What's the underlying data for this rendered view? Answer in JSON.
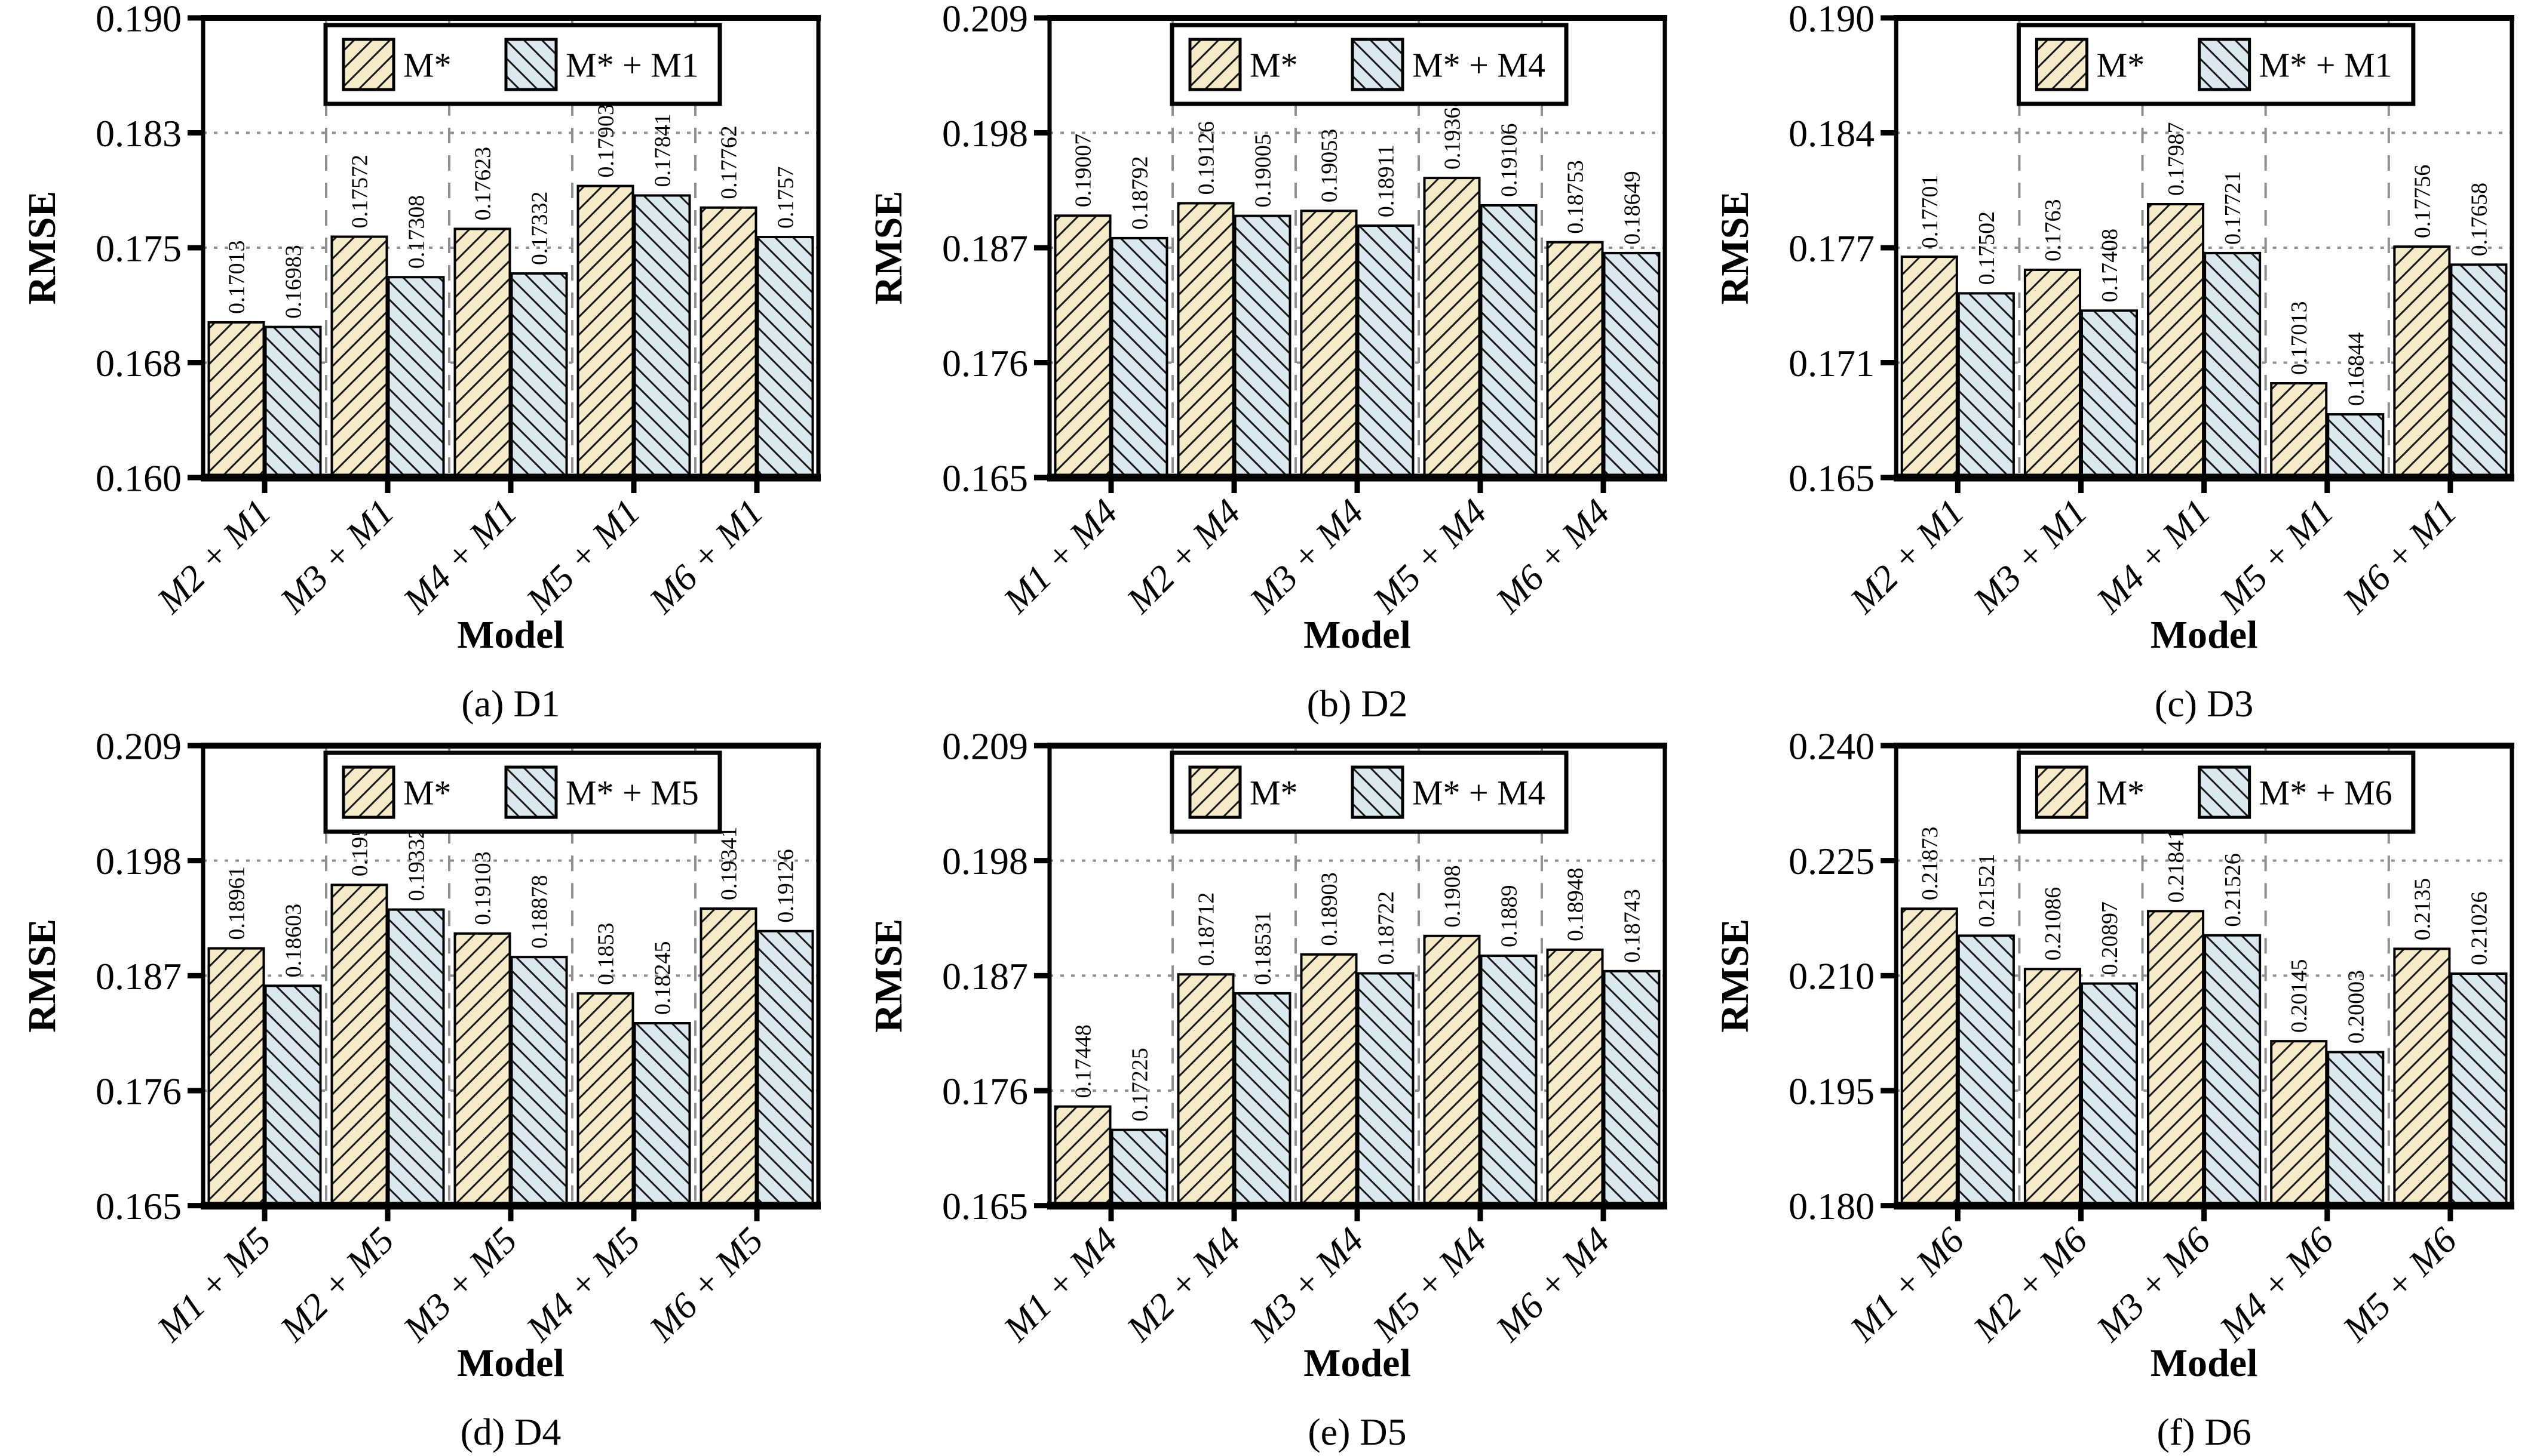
{
  "figure": {
    "kind": "six-panel RMSE bar chart comparison",
    "xlabel": "Model",
    "ylabel": "RMSE"
  },
  "style": {
    "series1_fill": "#f5ebc9",
    "series2_fill": "#dbe9ee",
    "hatch_line": "#161616",
    "bar_border": "#000000",
    "grid_line": "#909090",
    "axis_line": "#000000",
    "legend_bg": "#ffffff",
    "text_color": "#000000",
    "background": "#ffffff"
  },
  "chart_data": [
    {
      "type": "bar",
      "caption": "(a) D1",
      "xlabel": "Model",
      "ylabel": "RMSE",
      "ylim": [
        0.16,
        0.19
      ],
      "ytick_labels": [
        "0.160",
        "0.168",
        "0.175",
        "0.183",
        "0.190"
      ],
      "grid": true,
      "legend_position": "top-center",
      "legend": [
        "M*",
        "M* + M1"
      ],
      "categories": [
        "M2 + M1",
        "M3 + M1",
        "M4 + M1",
        "M5 + M1",
        "M6 + M1"
      ],
      "series": [
        {
          "name": "M*",
          "values": [
            0.17013,
            0.17572,
            0.17623,
            0.17903,
            0.17762
          ]
        },
        {
          "name": "M* + M1",
          "values": [
            0.16983,
            0.17308,
            0.17332,
            0.17841,
            0.1757
          ]
        }
      ]
    },
    {
      "type": "bar",
      "caption": "(b) D2",
      "xlabel": "Model",
      "ylabel": "RMSE",
      "ylim": [
        0.165,
        0.209
      ],
      "ytick_labels": [
        "0.165",
        "0.176",
        "0.187",
        "0.198",
        "0.209"
      ],
      "grid": true,
      "legend_position": "top-center",
      "legend": [
        "M*",
        "M* + M4"
      ],
      "categories": [
        "M1 + M4",
        "M2 + M4",
        "M3 + M4",
        "M5 + M4",
        "M6 + M4"
      ],
      "series": [
        {
          "name": "M*",
          "values": [
            0.19007,
            0.19126,
            0.19053,
            0.19368,
            0.18753
          ]
        },
        {
          "name": "M* + M4",
          "values": [
            0.18792,
            0.19005,
            0.18911,
            0.19106,
            0.18649
          ]
        }
      ]
    },
    {
      "type": "bar",
      "caption": "(c) D3",
      "xlabel": "Model",
      "ylabel": "RMSE",
      "ylim": [
        0.165,
        0.19
      ],
      "ytick_labels": [
        "0.165",
        "0.171",
        "0.177",
        "0.184",
        "0.190"
      ],
      "grid": true,
      "legend_position": "top-center",
      "legend": [
        "M*",
        "M* + M1"
      ],
      "categories": [
        "M2 + M1",
        "M3 + M1",
        "M4 + M1",
        "M5 + M1",
        "M6 + M1"
      ],
      "series": [
        {
          "name": "M*",
          "values": [
            0.17701,
            0.1763,
            0.17987,
            0.17013,
            0.17756
          ]
        },
        {
          "name": "M* + M1",
          "values": [
            0.17502,
            0.17408,
            0.17721,
            0.16844,
            0.17658
          ]
        }
      ]
    },
    {
      "type": "bar",
      "caption": "(d) D4",
      "xlabel": "Model",
      "ylabel": "RMSE",
      "ylim": [
        0.165,
        0.209
      ],
      "ytick_labels": [
        "0.165",
        "0.176",
        "0.187",
        "0.198",
        "0.209"
      ],
      "grid": true,
      "legend_position": "top-center",
      "legend": [
        "M*",
        "M* + M5"
      ],
      "categories": [
        "M1 + M5",
        "M2 + M5",
        "M3 + M5",
        "M4 + M5",
        "M6 + M5"
      ],
      "series": [
        {
          "name": "M*",
          "values": [
            0.18961,
            0.19568,
            0.19103,
            0.1853,
            0.19341
          ]
        },
        {
          "name": "M* + M5",
          "values": [
            0.18603,
            0.19332,
            0.18878,
            0.18245,
            0.19126
          ]
        }
      ]
    },
    {
      "type": "bar",
      "caption": "(e) D5",
      "xlabel": "Model",
      "ylabel": "RMSE",
      "ylim": [
        0.165,
        0.209
      ],
      "ytick_labels": [
        "0.165",
        "0.176",
        "0.187",
        "0.198",
        "0.209"
      ],
      "grid": true,
      "legend_position": "top-center",
      "legend": [
        "M*",
        "M* + M4"
      ],
      "categories": [
        "M1 + M4",
        "M2 + M4",
        "M3 + M4",
        "M5 + M4",
        "M6 + M4"
      ],
      "series": [
        {
          "name": "M*",
          "values": [
            0.17448,
            0.18712,
            0.18903,
            0.1908,
            0.18948
          ]
        },
        {
          "name": "M* + M4",
          "values": [
            0.17225,
            0.18531,
            0.18722,
            0.1889,
            0.18743
          ]
        }
      ]
    },
    {
      "type": "bar",
      "caption": "(f) D6",
      "xlabel": "Model",
      "ylabel": "RMSE",
      "ylim": [
        0.18,
        0.24
      ],
      "ytick_labels": [
        "0.180",
        "0.195",
        "0.210",
        "0.225",
        "0.240"
      ],
      "grid": true,
      "legend_position": "top-center",
      "legend": [
        "M*",
        "M* + M6"
      ],
      "categories": [
        "M1 + M6",
        "M2 + M6",
        "M3 + M6",
        "M4 + M6",
        "M5 + M6"
      ],
      "series": [
        {
          "name": "M*",
          "values": [
            0.21873,
            0.21086,
            0.21841,
            0.20145,
            0.2135
          ]
        },
        {
          "name": "M* + M6",
          "values": [
            0.21521,
            0.20897,
            0.21526,
            0.20003,
            0.21026
          ]
        }
      ]
    }
  ]
}
